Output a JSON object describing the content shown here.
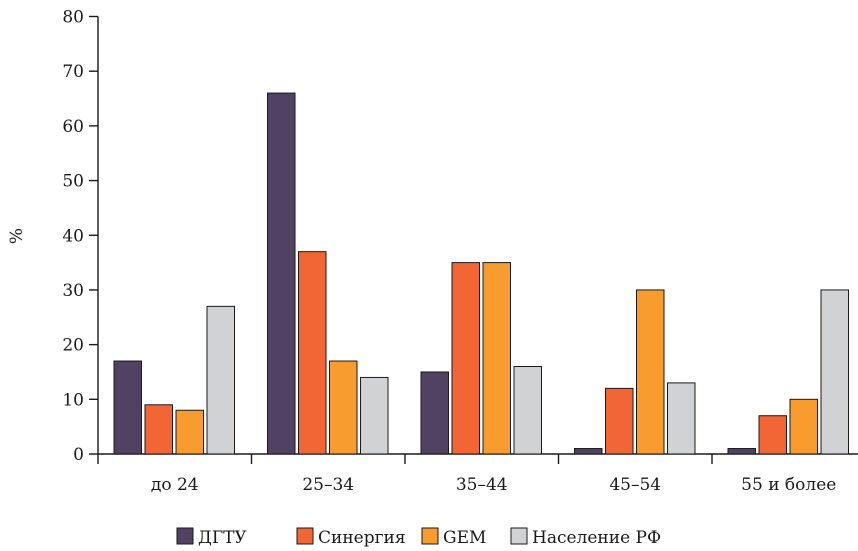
{
  "chart_data": {
    "type": "bar",
    "ylabel": "%",
    "xlabel": "",
    "ylim": [
      0,
      80
    ],
    "yticks": [
      "0",
      "10",
      "20",
      "30",
      "40",
      "50",
      "60",
      "70",
      "80"
    ],
    "grid": false,
    "legend_position": "bottom",
    "categories": [
      "до 24",
      "25–34",
      "35–44",
      "45–54",
      "55 и более"
    ],
    "series": [
      {
        "name": "ДГТУ",
        "color": "#4f4262",
        "values": [
          17,
          66,
          15,
          1,
          1
        ]
      },
      {
        "name": "Синергия",
        "color": "#f26535",
        "values": [
          9,
          37,
          35,
          12,
          7
        ]
      },
      {
        "name": "GEM",
        "color": "#f89c2f",
        "values": [
          8,
          17,
          35,
          30,
          10
        ]
      },
      {
        "name": "Население РФ",
        "color": "#d1d2d4",
        "values": [
          27,
          14,
          16,
          13,
          30
        ]
      }
    ]
  }
}
